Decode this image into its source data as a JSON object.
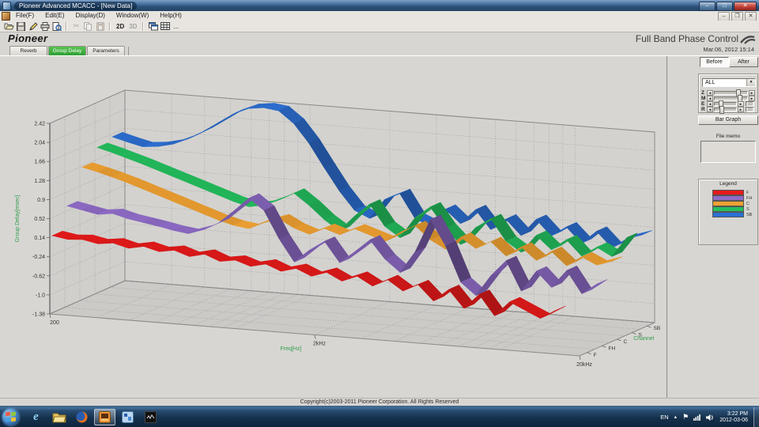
{
  "window": {
    "title": "Pioneer Advanced MCACC - [New Data]"
  },
  "menu": {
    "items": [
      "File(F)",
      "Edit(E)",
      "Display(D)",
      "Window(W)",
      "Help(H)"
    ]
  },
  "toolbar": {
    "label_2d": "2D",
    "label_3d": "3D",
    "ellipsis": "..."
  },
  "brand": {
    "logo": "Pioneer",
    "feature_title": "Full Band Phase Control"
  },
  "tabs": [
    {
      "label": "Reverb",
      "active": false
    },
    {
      "label": "Group Delay",
      "active": true
    },
    {
      "label": "Parameters",
      "active": false
    }
  ],
  "side_panel": {
    "timestamp": "Mar.06, 2012 15:14",
    "before_label": "Before",
    "after_label": "After",
    "channel_select": {
      "value": "ALL"
    },
    "sliders": [
      {
        "label": "Z",
        "thumb_pos": 0.78,
        "value": null
      },
      {
        "label": "M",
        "thumb_pos": 0.82,
        "value": null
      },
      {
        "label": "E",
        "thumb_pos": 0.22,
        "value": "10"
      },
      {
        "label": "R",
        "thumb_pos": 0.28,
        "value": "20"
      }
    ],
    "bar_graph_label": "Bar Graph",
    "file_memo_label": "File memo",
    "file_memo_value": "",
    "legend": {
      "title": "Legend",
      "entries": [
        {
          "label": "F",
          "color": "#e61a1a"
        },
        {
          "label": "FH",
          "color": "#8f6cc8"
        },
        {
          "label": "C",
          "color": "#f0a232"
        },
        {
          "label": "S",
          "color": "#24bf5e"
        },
        {
          "label": "SB",
          "color": "#2d6fd2"
        }
      ]
    }
  },
  "chart_data": {
    "type": "area",
    "style": "3d-ribbon",
    "xlabel": "Freq[Hz]",
    "ylabel": "Group Delay[msec]",
    "zlabel": "Channel",
    "x_scale": "log",
    "x_range": [
      200,
      20000
    ],
    "xticks": [
      {
        "f": 200,
        "label": "200"
      },
      {
        "f": 2000,
        "label": "2kHz"
      },
      {
        "f": 20000,
        "label": "20kHz"
      }
    ],
    "grid_freqs": [
      200,
      300,
      400,
      500,
      600,
      700,
      800,
      900,
      1000,
      2000,
      3000,
      4000,
      5000,
      6000,
      7000,
      8000,
      9000,
      10000,
      20000
    ],
    "ylim": [
      -1.38,
      2.42
    ],
    "y_ticks": [
      "2.42",
      "2.04",
      "1.66",
      "1.28",
      "0.9",
      "0.52",
      "0.14",
      "-0.24",
      "-0.62",
      "-1.0",
      "-1.38"
    ],
    "channels": [
      "F",
      "FH",
      "C",
      "S",
      "SB"
    ],
    "series": [
      {
        "name": "SB",
        "channel_index": 4,
        "color": "#2d6fd2",
        "span": 1.0,
        "values": [
          1.6,
          1.52,
          1.45,
          1.48,
          1.55,
          1.68,
          1.85,
          2.05,
          2.25,
          2.38,
          2.42,
          2.38,
          2.15,
          1.78,
          1.32,
          0.88,
          0.52,
          0.38,
          0.78,
          0.92,
          0.45,
          0.32,
          0.68,
          0.42,
          0.72,
          0.35,
          0.58,
          0.28,
          0.62,
          0.32,
          0.52,
          0.22,
          0.48,
          0.18,
          0.38,
          0.48
        ]
      },
      {
        "name": "S",
        "channel_index": 3,
        "color": "#24bf5e",
        "span": 1.0,
        "values": [
          1.52,
          1.44,
          1.35,
          1.26,
          1.16,
          1.06,
          0.96,
          0.86,
          0.76,
          0.66,
          0.58,
          0.63,
          0.76,
          0.92,
          0.7,
          0.44,
          0.24,
          0.56,
          0.82,
          0.4,
          0.2,
          0.62,
          0.86,
          0.46,
          0.16,
          0.52,
          0.72,
          0.3,
          0.1,
          0.46,
          0.2,
          0.42,
          0.12,
          0.32,
          0.16,
          0.56
        ]
      },
      {
        "name": "C",
        "channel_index": 2,
        "color": "#f0a232",
        "span": 1.0,
        "values": [
          1.26,
          1.19,
          1.11,
          1.02,
          0.92,
          0.82,
          0.72,
          0.62,
          0.52,
          0.42,
          0.34,
          0.3,
          0.44,
          0.54,
          0.38,
          0.28,
          0.42,
          0.32,
          0.46,
          0.36,
          0.26,
          0.46,
          0.62,
          0.36,
          0.2,
          0.46,
          0.26,
          0.42,
          0.16,
          0.36,
          0.12,
          0.32,
          0.06,
          0.26,
          0.12,
          0.22
        ]
      },
      {
        "name": "FH",
        "channel_index": 1,
        "color": "#8f6cc8",
        "span": 1.0,
        "values": [
          0.62,
          0.56,
          0.5,
          0.54,
          0.46,
          0.41,
          0.36,
          0.3,
          0.26,
          0.36,
          0.52,
          0.78,
          1.06,
          0.84,
          0.3,
          -0.14,
          0.12,
          0.32,
          -0.08,
          0.16,
          0.42,
          0.06,
          -0.18,
          0.26,
          0.92,
          0.42,
          -0.28,
          -0.52,
          -0.1,
          0.22,
          -0.36,
          0.06,
          -0.24,
          0.12,
          -0.32,
          -0.1
        ]
      },
      {
        "name": "F",
        "channel_index": 0,
        "color": "#e61a1a",
        "span": 0.95,
        "values": [
          0.16,
          0.11,
          0.13,
          0.07,
          0.11,
          0.03,
          0.09,
          0.01,
          0.06,
          -0.04,
          0.03,
          -0.09,
          -0.04,
          -0.14,
          -0.07,
          -0.19,
          -0.11,
          -0.24,
          -0.14,
          -0.29,
          -0.17,
          -0.34,
          -0.19,
          -0.39,
          -0.24,
          -0.54,
          -0.29,
          -0.64,
          -0.34,
          -0.74,
          -0.44,
          -0.58,
          -0.72,
          -0.54
        ]
      }
    ],
    "legend_position": "right"
  },
  "status_bar": {
    "copyright": "Copyright(c)2003-2011 Pioneer Corporation. All Rights Reserved"
  },
  "taskbar": {
    "tray": {
      "lang": "EN",
      "time": "3:22 PM",
      "date": "2012-03-06"
    }
  }
}
